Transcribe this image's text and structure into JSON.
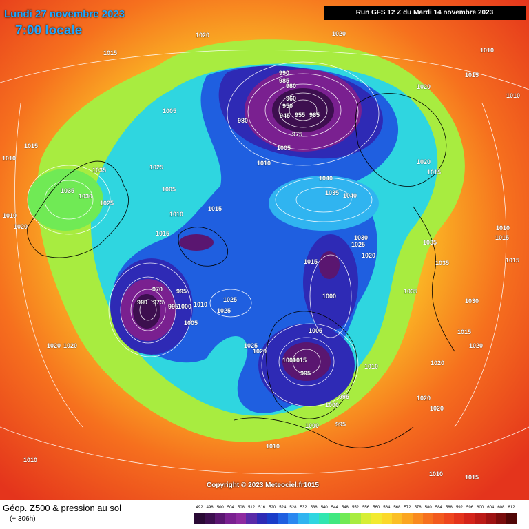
{
  "header": {
    "date": "Lundi 27 novembre 2023",
    "time": "7:00 locale",
    "run": "Run GFS 12 Z du Mardi 14 novembre 2023"
  },
  "copyright": "Copyright © 2023 Meteociel.fr1015",
  "footer": {
    "title": "Géop. Z500 & pression au sol",
    "subtitle": "(+ 306h)"
  },
  "scale": {
    "labels": [
      "492",
      "496",
      "500",
      "504",
      "508",
      "512",
      "516",
      "520",
      "524",
      "528",
      "532",
      "536",
      "540",
      "544",
      "548",
      "552",
      "556",
      "560",
      "564",
      "568",
      "572",
      "576",
      "580",
      "584",
      "588",
      "592",
      "596",
      "600",
      "604",
      "608",
      "612"
    ],
    "colors": [
      "#2a0a35",
      "#3d0f4f",
      "#5a1670",
      "#7a2090",
      "#8e2aa0",
      "#5a2aa8",
      "#2e2ab5",
      "#1a3cc8",
      "#1f5fe0",
      "#2a88f0",
      "#30b4f0",
      "#2fd6e0",
      "#30e6b0",
      "#40e880",
      "#70ea55",
      "#a8ec40",
      "#d6ee35",
      "#f2ea30",
      "#fbd82a",
      "#fbbf25",
      "#fba520",
      "#f98a1f",
      "#f6701e",
      "#f25a1e",
      "#ee461e",
      "#e4341c",
      "#d4241a",
      "#bc1a16",
      "#9e1212",
      "#7a0c0c",
      "#500606"
    ]
  },
  "pressure_labels": [
    {
      "text": "1020"
    },
    {
      "text": "1020"
    },
    {
      "text": "1010"
    },
    {
      "text": "1015"
    },
    {
      "text": "1015"
    },
    {
      "text": "1010"
    },
    {
      "text": "1020"
    },
    {
      "text": "990"
    },
    {
      "text": "985"
    },
    {
      "text": "980"
    },
    {
      "text": "960"
    },
    {
      "text": "950"
    },
    {
      "text": "945"
    },
    {
      "text": "955"
    },
    {
      "text": "965"
    },
    {
      "text": "975"
    },
    {
      "text": "980"
    },
    {
      "text": "1005"
    },
    {
      "text": "1005"
    },
    {
      "text": "1010"
    },
    {
      "text": "1015"
    },
    {
      "text": "1035"
    },
    {
      "text": "1025"
    },
    {
      "text": "1020"
    },
    {
      "text": "1035"
    },
    {
      "text": "1030"
    },
    {
      "text": "1025"
    },
    {
      "text": "1005"
    },
    {
      "text": "1010"
    },
    {
      "text": "1010"
    },
    {
      "text": "1010"
    },
    {
      "text": "1015"
    },
    {
      "text": "1015"
    },
    {
      "text": "1040"
    },
    {
      "text": "1035"
    },
    {
      "text": "1040"
    },
    {
      "text": "1020"
    },
    {
      "text": "1015"
    },
    {
      "text": "1030"
    },
    {
      "text": "1025"
    },
    {
      "text": "1020"
    },
    {
      "text": "1035"
    },
    {
      "text": "1035"
    },
    {
      "text": "1015"
    },
    {
      "text": "1010"
    },
    {
      "text": "1015"
    },
    {
      "text": "1015"
    },
    {
      "text": "1035"
    },
    {
      "text": "1030"
    },
    {
      "text": "1015"
    },
    {
      "text": "1000"
    },
    {
      "text": "970"
    },
    {
      "text": "980"
    },
    {
      "text": "975"
    },
    {
      "text": "995"
    },
    {
      "text": "995"
    },
    {
      "text": "1000"
    },
    {
      "text": "1010"
    },
    {
      "text": "1025"
    },
    {
      "text": "1025"
    },
    {
      "text": "1005"
    },
    {
      "text": "1020"
    },
    {
      "text": "1020"
    },
    {
      "text": "1025"
    },
    {
      "text": "1020"
    },
    {
      "text": "1005"
    },
    {
      "text": "1000"
    },
    {
      "text": "1015"
    },
    {
      "text": "995"
    },
    {
      "text": "1010"
    },
    {
      "text": "1020"
    },
    {
      "text": "1020"
    },
    {
      "text": "1020"
    },
    {
      "text": "1020"
    },
    {
      "text": "995"
    },
    {
      "text": "1000"
    },
    {
      "text": "995"
    },
    {
      "text": "1000"
    },
    {
      "text": "1010"
    },
    {
      "text": "1010"
    },
    {
      "text": "1010"
    },
    {
      "text": "1015"
    }
  ]
}
